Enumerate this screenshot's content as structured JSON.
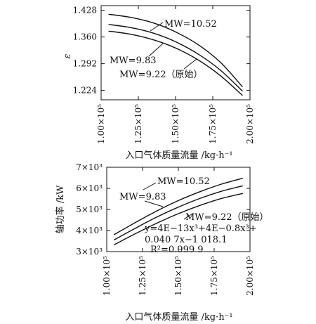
{
  "chart_data": [
    {
      "type": "line",
      "xlabel": "入口气体质量流量 /kg·h⁻¹",
      "ylabel": "ε",
      "xlim": [
        100000,
        200000
      ],
      "ylim": [
        1.2,
        1.44
      ],
      "xticks": [
        100000,
        125000,
        150000,
        175000,
        200000
      ],
      "xtick_labels": [
        "1.00×10⁵",
        "1.25×10⁵",
        "1.50×10⁵",
        "1.75×10⁵",
        "2.00×10⁵"
      ],
      "yticks": [
        1.224,
        1.292,
        1.36,
        1.428
      ],
      "ytick_labels": [
        "1.224",
        "1.292",
        "1.360",
        "1.428"
      ],
      "series": [
        {
          "name": "MW=10.52",
          "x": [
            105000,
            120000,
            135000,
            150000,
            165000,
            180000,
            195000
          ],
          "y": [
            1.418,
            1.41,
            1.396,
            1.373,
            1.341,
            1.296,
            1.233
          ]
        },
        {
          "name": "MW=9.83",
          "x": [
            105000,
            120000,
            135000,
            150000,
            165000,
            180000,
            195000
          ],
          "y": [
            1.392,
            1.384,
            1.37,
            1.348,
            1.317,
            1.276,
            1.222
          ]
        },
        {
          "name": "MW=9.22（原始）",
          "x": [
            105000,
            120000,
            135000,
            150000,
            165000,
            180000,
            195000
          ],
          "y": [
            1.375,
            1.367,
            1.353,
            1.332,
            1.302,
            1.262,
            1.211
          ]
        }
      ],
      "annotations": [
        "MW=10.52",
        "MW=9.83",
        "MW=9.22（原始）"
      ]
    },
    {
      "type": "line",
      "xlabel": "入口气体质量流量 /kg·h⁻¹",
      "ylabel": "轴功率 /kW",
      "xlim": [
        100000,
        200000
      ],
      "ylim": [
        3000,
        7000
      ],
      "xticks": [
        100000,
        125000,
        150000,
        175000,
        200000
      ],
      "xtick_labels": [
        "1.00×10⁵",
        "1.25×10⁵",
        "1.50×10⁵",
        "1.75×10⁵",
        "2.00×10⁵"
      ],
      "yticks": [
        3000,
        4000,
        5000,
        6000,
        7000
      ],
      "ytick_labels": [
        "3×10³",
        "4×10³",
        "5×10³",
        "6×10³",
        "7×10³"
      ],
      "series": [
        {
          "name": "MW=10.52",
          "x": [
            105000,
            120000,
            135000,
            150000,
            165000,
            180000,
            195000
          ],
          "y": [
            3800,
            4380,
            4930,
            5420,
            5840,
            6200,
            6480
          ]
        },
        {
          "name": "MW=9.83",
          "x": [
            105000,
            120000,
            135000,
            150000,
            165000,
            180000,
            195000
          ],
          "y": [
            3550,
            4110,
            4640,
            5110,
            5520,
            5860,
            6120
          ]
        },
        {
          "name": "MW=9.22（原始）",
          "x": [
            105000,
            120000,
            135000,
            150000,
            165000,
            180000,
            195000
          ],
          "y": [
            3320,
            3850,
            4350,
            4800,
            5190,
            5520,
            5760
          ]
        }
      ],
      "annotations": [
        "MW=10.52",
        "MW=9.83",
        "MW=9.22（原始）",
        "y=4E−13x³+4E−0.8x³+",
        "0.040 7x−1 018.1",
        "R²=0.999 9"
      ]
    }
  ]
}
